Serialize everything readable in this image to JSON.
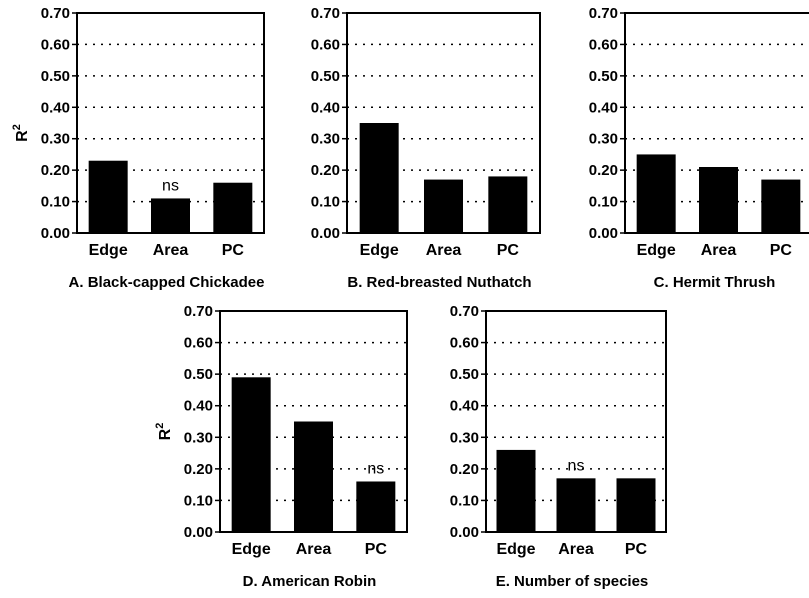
{
  "chart_data": [
    {
      "type": "bar",
      "title": "A. Black-capped Chickadee",
      "ylabel": "R",
      "ylabel_superscript": "2",
      "categories": [
        "Edge",
        "Area",
        "PC"
      ],
      "values": [
        0.23,
        0.11,
        0.16
      ],
      "annotations": [
        "",
        "ns",
        ""
      ],
      "ylim": [
        0,
        0.7
      ],
      "yticks": [
        "0.00",
        "0.10",
        "0.20",
        "0.30",
        "0.40",
        "0.50",
        "0.60",
        "0.70"
      ],
      "grid": true
    },
    {
      "type": "bar",
      "title": "B. Red-breasted Nuthatch",
      "ylabel": "",
      "ylabel_superscript": "",
      "categories": [
        "Edge",
        "Area",
        "PC"
      ],
      "values": [
        0.35,
        0.17,
        0.18
      ],
      "annotations": [
        "",
        "",
        ""
      ],
      "ylim": [
        0,
        0.7
      ],
      "yticks": [
        "0.00",
        "0.10",
        "0.20",
        "0.30",
        "0.40",
        "0.50",
        "0.60",
        "0.70"
      ],
      "grid": true
    },
    {
      "type": "bar",
      "title": "C. Hermit Thrush",
      "ylabel": "",
      "ylabel_superscript": "",
      "categories": [
        "Edge",
        "Area",
        "PC"
      ],
      "values": [
        0.25,
        0.21,
        0.17
      ],
      "annotations": [
        "",
        "",
        ""
      ],
      "ylim": [
        0,
        0.7
      ],
      "yticks": [
        "0.00",
        "0.10",
        "0.20",
        "0.30",
        "0.40",
        "0.50",
        "0.60",
        "0.70"
      ],
      "grid": true
    },
    {
      "type": "bar",
      "title": "D. American Robin",
      "ylabel": "R",
      "ylabel_superscript": "2",
      "categories": [
        "Edge",
        "Area",
        "PC"
      ],
      "values": [
        0.49,
        0.35,
        0.16
      ],
      "annotations": [
        "",
        "",
        "ns"
      ],
      "ylim": [
        0,
        0.7
      ],
      "yticks": [
        "0.00",
        "0.10",
        "0.20",
        "0.30",
        "0.40",
        "0.50",
        "0.60",
        "0.70"
      ],
      "grid": true
    },
    {
      "type": "bar",
      "title": "E. Number of species",
      "ylabel": "",
      "ylabel_superscript": "",
      "categories": [
        "Edge",
        "Area",
        "PC"
      ],
      "values": [
        0.26,
        0.17,
        0.17
      ],
      "annotations": [
        "",
        "ns",
        ""
      ],
      "ylim": [
        0,
        0.7
      ],
      "yticks": [
        "0.00",
        "0.10",
        "0.20",
        "0.30",
        "0.40",
        "0.50",
        "0.60",
        "0.70"
      ],
      "grid": true
    }
  ]
}
